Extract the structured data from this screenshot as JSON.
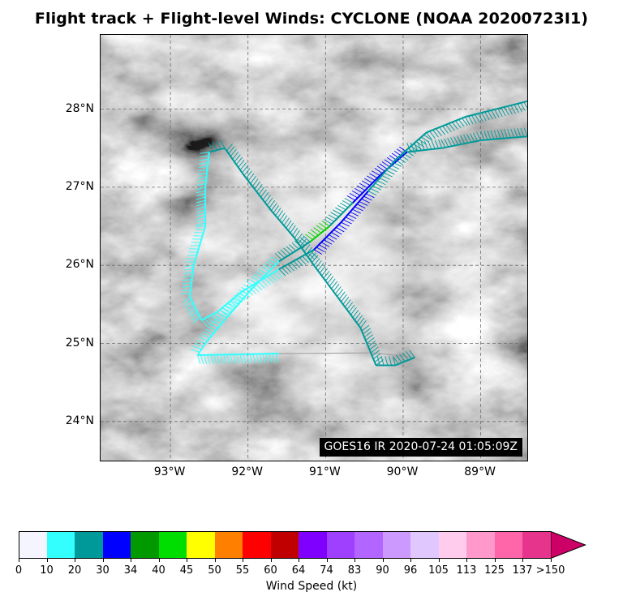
{
  "title": "Flight track + Flight-level Winds: CYCLONE (NOAA 20200723I1)",
  "image_stamp": "GOES16 IR 2020-07-24 01:05:09Z",
  "map": {
    "lat_labels": [
      "28°N",
      "27°N",
      "26°N",
      "25°N",
      "24°N"
    ],
    "lon_labels": [
      "93°W",
      "92°W",
      "91°W",
      "90°W",
      "89°W"
    ],
    "lat_values": [
      28,
      27,
      26,
      25,
      24
    ],
    "lon_values": [
      -93,
      -92,
      -91,
      -90,
      -89
    ],
    "extent": {
      "west": -93.9,
      "east": -88.4,
      "south": 23.5,
      "north": 28.95
    },
    "gridlines": true,
    "grid_color": "#6e6e6e",
    "flight_track": {
      "points": [
        [
          -88.4,
          27.65
        ],
        [
          -89.0,
          27.6
        ],
        [
          -89.5,
          27.5
        ],
        [
          -89.95,
          27.45
        ],
        [
          -90.3,
          27.15
        ],
        [
          -90.65,
          26.8
        ],
        [
          -90.95,
          26.5
        ],
        [
          -91.2,
          26.3
        ],
        [
          -91.6,
          26.05
        ],
        [
          -91.95,
          25.7
        ],
        [
          -92.3,
          25.3
        ],
        [
          -92.55,
          25.0
        ],
        [
          -92.65,
          24.85
        ],
        [
          -91.6,
          24.87
        ],
        [
          -90.4,
          24.88
        ],
        [
          -89.85,
          24.82
        ],
        [
          -90.1,
          24.72
        ],
        [
          -90.35,
          24.72
        ],
        [
          -90.55,
          25.2
        ],
        [
          -90.85,
          25.6
        ],
        [
          -91.15,
          26.0
        ],
        [
          -91.4,
          26.35
        ],
        [
          -91.7,
          26.7
        ],
        [
          -92.05,
          27.15
        ],
        [
          -92.3,
          27.5
        ],
        [
          -92.5,
          27.45
        ],
        [
          -92.55,
          27.0
        ],
        [
          -92.55,
          26.5
        ],
        [
          -92.7,
          26.0
        ],
        [
          -92.75,
          25.6
        ],
        [
          -92.6,
          25.3
        ],
        [
          -92.4,
          25.4
        ],
        [
          -92.1,
          25.65
        ],
        [
          -91.6,
          25.95
        ],
        [
          -91.15,
          26.2
        ],
        [
          -90.8,
          26.55
        ],
        [
          -90.45,
          26.95
        ],
        [
          -90.1,
          27.35
        ],
        [
          -89.7,
          27.7
        ],
        [
          -89.2,
          27.9
        ],
        [
          -88.4,
          28.1
        ]
      ],
      "wind_color_by_segment": [
        "#009999",
        "#009999",
        "#009999",
        "#0000ff",
        "#0000ff",
        "#009999",
        "#00d400",
        "#009999",
        "#33ffff",
        "#33ffff",
        "#33ffff",
        "#33ffff",
        "#33ffff",
        "#9a9a9a",
        "#9a9a9a",
        "#009999",
        "#009999",
        "#009999",
        "#009999",
        "#009999",
        "#009999",
        "#009999",
        "#009999",
        "#009999",
        "#009999",
        "#33ffff",
        "#33ffff",
        "#33ffff",
        "#33ffff",
        "#33ffff",
        "#33ffff",
        "#33ffff",
        "#33ffff",
        "#009999",
        "#0000ff",
        "#0000ff",
        "#009999",
        "#009999",
        "#009999",
        "#009999"
      ]
    }
  },
  "colorbar": {
    "label": "Wind Speed (kt)",
    "ticks": [
      "0",
      "10",
      "20",
      "30",
      "34",
      "40",
      "45",
      "50",
      "55",
      "60",
      "64",
      "74",
      "83",
      "90",
      "96",
      "105",
      "113",
      "125",
      "137",
      ">150"
    ],
    "colors": [
      "#f5f5ff",
      "#33ffff",
      "#009999",
      "#0000ff",
      "#009a00",
      "#00dd00",
      "#ffff00",
      "#ff7f00",
      "#ff0000",
      "#c00000",
      "#8000ff",
      "#a040ff",
      "#b266ff",
      "#cc99ff",
      "#e0c8ff",
      "#ffccee",
      "#ff99cc",
      "#ff66aa",
      "#e6338c",
      "#cc0066"
    ]
  }
}
